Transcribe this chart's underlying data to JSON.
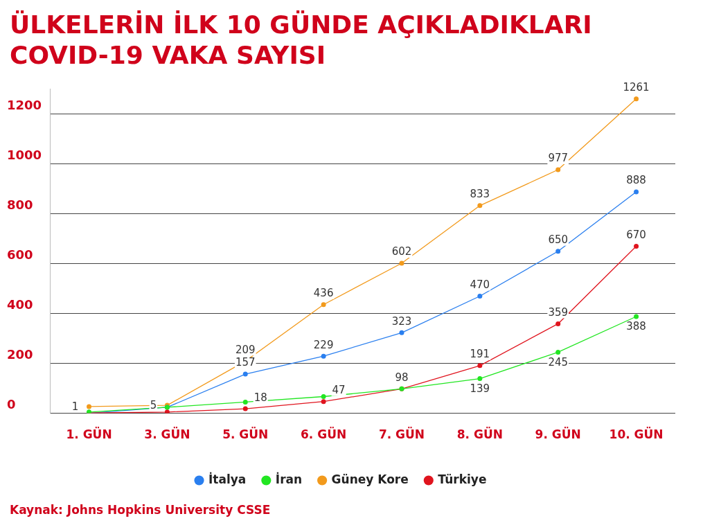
{
  "chart_data": {
    "type": "line",
    "title": "ÜLKELERİN İLK 10 GÜNDE AÇIKLADIKLARI COVID-19 VAKA SAYISI",
    "categories": [
      "1. GÜN",
      "3. GÜN",
      "5. GÜN",
      "6. GÜN",
      "7. GÜN",
      "8. GÜN",
      "9. GÜN",
      "10. GÜN"
    ],
    "series": [
      {
        "name": "İtalya",
        "color": "#2a7fef",
        "values": [
          0,
          24,
          157,
          229,
          323,
          470,
          650,
          888
        ],
        "value_labels": [
          null,
          null,
          "157",
          "229",
          "323",
          "470",
          "650",
          "888"
        ]
      },
      {
        "name": "İran",
        "color": "#22e622",
        "values": [
          5,
          24,
          45,
          67,
          98,
          139,
          245,
          388
        ],
        "value_labels": [
          null,
          null,
          null,
          null,
          null,
          "139",
          "245",
          "388"
        ]
      },
      {
        "name": "Güney Kore",
        "color": "#f29a1c",
        "values": [
          27,
          32,
          209,
          436,
          602,
          833,
          977,
          1261
        ],
        "value_labels": [
          null,
          null,
          "209",
          "436",
          "602",
          "833",
          "977",
          "1261"
        ]
      },
      {
        "name": "Türkiye",
        "color": "#e0141e",
        "values": [
          1,
          5,
          18,
          47,
          98,
          191,
          359,
          670
        ],
        "value_labels": [
          "1",
          "5",
          "18",
          "47",
          "98",
          "191",
          "359",
          "670"
        ]
      }
    ],
    "ylim": [
      0,
      1300
    ],
    "yticks": [
      0,
      200,
      400,
      600,
      800,
      1000,
      1200
    ],
    "grid": "y",
    "legend": "bottom",
    "marker": "circle",
    "line_style": "solid",
    "annotations": [
      "Kaynak: Johns Hopkins University CSSE"
    ]
  }
}
